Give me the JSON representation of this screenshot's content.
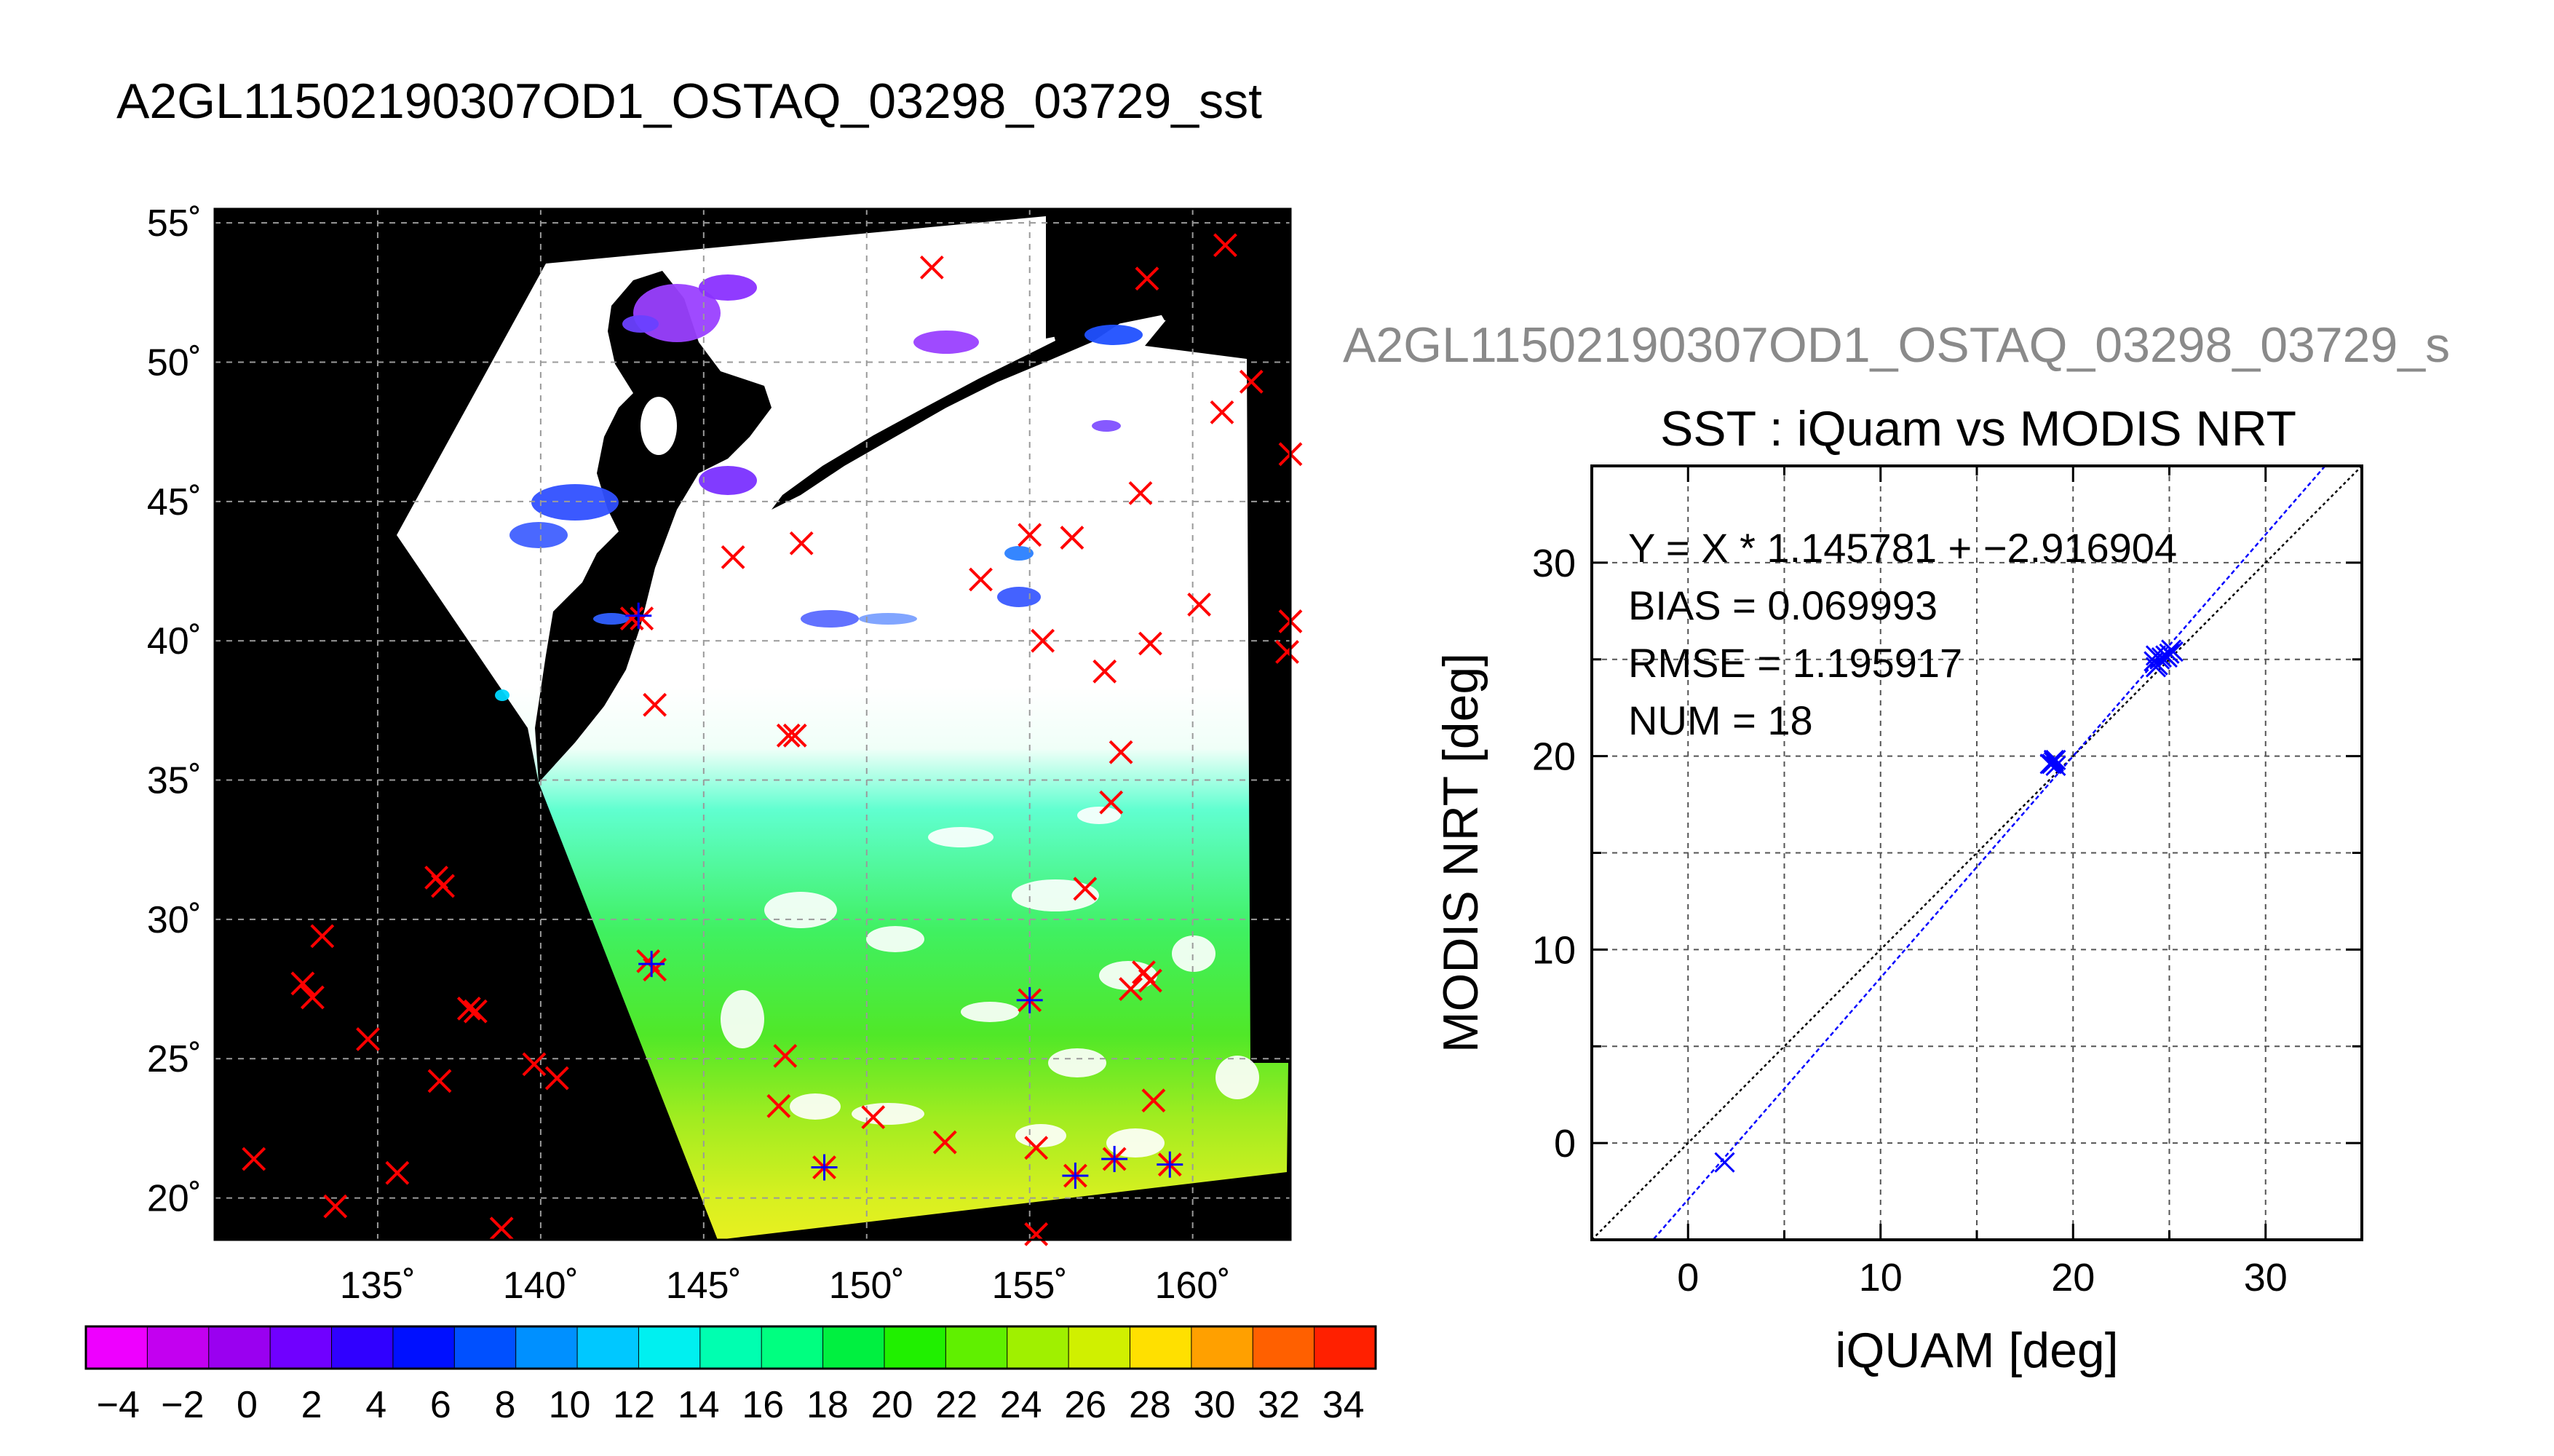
{
  "page_title": "A2GL11502190307OD1_OSTAQ_03298_03729_sst",
  "chart_data": [
    {
      "type": "map",
      "title": "A2GL11502190307OD1_OSTAQ_03298_03729_sst",
      "lon_range": [
        130,
        163
      ],
      "lat_range": [
        18.5,
        55.5
      ],
      "lon_ticks": [
        135,
        140,
        145,
        150,
        155,
        160
      ],
      "lat_ticks": [
        20,
        25,
        30,
        35,
        40,
        45,
        50,
        55
      ],
      "lon_tick_labels": [
        "135˚",
        "140˚",
        "145˚",
        "150˚",
        "155˚",
        "160˚"
      ],
      "lat_tick_labels": [
        "20˚",
        "25˚",
        "30˚",
        "35˚",
        "40˚",
        "45˚",
        "50˚",
        "55˚"
      ],
      "grid": true,
      "background_color": "#000000",
      "swath_color": "#ffffff",
      "marker_color": "#ff0000",
      "matched_marker_color": "#0000ff",
      "points": [
        [
          161.0,
          54.2
        ],
        [
          152.0,
          53.4
        ],
        [
          158.6,
          53.0
        ],
        [
          161.8,
          49.3
        ],
        [
          160.9,
          48.2
        ],
        [
          163.0,
          46.7
        ],
        [
          158.4,
          45.3
        ],
        [
          155.0,
          43.8
        ],
        [
          156.3,
          43.7
        ],
        [
          148.0,
          43.5
        ],
        [
          145.9,
          43.0
        ],
        [
          153.5,
          42.2
        ],
        [
          142.8,
          40.8
        ],
        [
          143.1,
          40.8
        ],
        [
          160.2,
          41.3
        ],
        [
          163.0,
          40.7
        ],
        [
          162.9,
          39.6
        ],
        [
          155.4,
          40.0
        ],
        [
          158.7,
          39.9
        ],
        [
          157.3,
          38.9
        ],
        [
          143.5,
          37.7
        ],
        [
          147.6,
          36.6
        ],
        [
          147.8,
          36.6
        ],
        [
          157.8,
          36.0
        ],
        [
          157.5,
          34.2
        ],
        [
          156.7,
          31.1
        ],
        [
          136.8,
          31.5
        ],
        [
          137.0,
          31.2
        ],
        [
          133.3,
          29.4
        ],
        [
          143.3,
          28.5
        ],
        [
          143.5,
          28.2
        ],
        [
          158.5,
          28.1
        ],
        [
          158.7,
          27.8
        ],
        [
          158.1,
          27.5
        ],
        [
          155.0,
          27.1
        ],
        [
          132.7,
          27.7
        ],
        [
          133.0,
          27.2
        ],
        [
          137.8,
          26.8
        ],
        [
          138.0,
          26.7
        ],
        [
          134.7,
          25.7
        ],
        [
          147.5,
          25.1
        ],
        [
          139.8,
          24.8
        ],
        [
          140.5,
          24.3
        ],
        [
          136.9,
          24.2
        ],
        [
          147.3,
          23.3
        ],
        [
          158.8,
          23.5
        ],
        [
          150.2,
          22.9
        ],
        [
          152.4,
          22.0
        ],
        [
          155.2,
          21.8
        ],
        [
          131.2,
          21.4
        ],
        [
          135.6,
          20.9
        ],
        [
          148.7,
          21.1
        ],
        [
          156.4,
          20.8
        ],
        [
          157.6,
          21.4
        ],
        [
          159.3,
          21.2
        ],
        [
          133.7,
          19.7
        ],
        [
          138.8,
          18.9
        ],
        [
          155.2,
          18.7
        ]
      ],
      "matched_points": [
        [
          143.0,
          40.9
        ],
        [
          143.4,
          28.4
        ],
        [
          155.0,
          27.1
        ],
        [
          148.7,
          21.1
        ],
        [
          156.4,
          20.8
        ],
        [
          157.6,
          21.4
        ],
        [
          159.3,
          21.2
        ]
      ],
      "colorbar": {
        "min": -5,
        "max": 35,
        "tick_labels": [
          "−4",
          "−2",
          "0",
          "2",
          "4",
          "6",
          "8",
          "10",
          "12",
          "14",
          "16",
          "18",
          "20",
          "22",
          "24",
          "26",
          "28",
          "30",
          "32",
          "34"
        ],
        "colors": [
          "#ee00ff",
          "#c300f0",
          "#9a00f0",
          "#7000ff",
          "#3000ff",
          "#0010ff",
          "#0050ff",
          "#0090ff",
          "#00c8ff",
          "#00f0f0",
          "#00ffb0",
          "#00ff80",
          "#00f040",
          "#20f000",
          "#60f000",
          "#a0f000",
          "#d0f000",
          "#ffe000",
          "#ffa000",
          "#ff6000",
          "#ff2000"
        ]
      }
    },
    {
      "type": "scatter",
      "header": "A2GL11502190307OD1_OSTAQ_03298_03729_s",
      "title": "SST : iQuam vs MODIS NRT",
      "xlabel": "iQUAM [deg]",
      "ylabel": "MODIS NRT [deg]",
      "xlim": [
        -5,
        35
      ],
      "ylim": [
        -5,
        35
      ],
      "xticks": [
        0,
        10,
        20,
        30
      ],
      "yticks": [
        0,
        10,
        20,
        30
      ],
      "grid": true,
      "marker_color": "#0000ff",
      "stats": [
        "Y = X * 1.145781 + −2.916904",
        "BIAS = 0.069993",
        "RMSE = 1.195917",
        "NUM = 18"
      ],
      "regression": {
        "slope": 1.145781,
        "intercept": -2.916904,
        "color": "#0000ff"
      },
      "identity_line": {
        "color": "#000000"
      },
      "points": [
        [
          1.9,
          -1.0
        ],
        [
          18.9,
          19.6
        ],
        [
          19.0,
          19.8
        ],
        [
          19.1,
          19.5
        ],
        [
          19.0,
          19.7
        ],
        [
          18.8,
          19.6
        ],
        [
          19.1,
          19.8
        ],
        [
          24.2,
          24.9
        ],
        [
          24.3,
          25.2
        ],
        [
          24.4,
          24.7
        ],
        [
          24.5,
          25.0
        ],
        [
          24.3,
          24.6
        ],
        [
          24.6,
          25.1
        ],
        [
          25.0,
          25.3
        ],
        [
          25.1,
          25.5
        ],
        [
          24.8,
          25.2
        ],
        [
          25.2,
          25.4
        ],
        [
          24.9,
          25.1
        ]
      ]
    }
  ]
}
